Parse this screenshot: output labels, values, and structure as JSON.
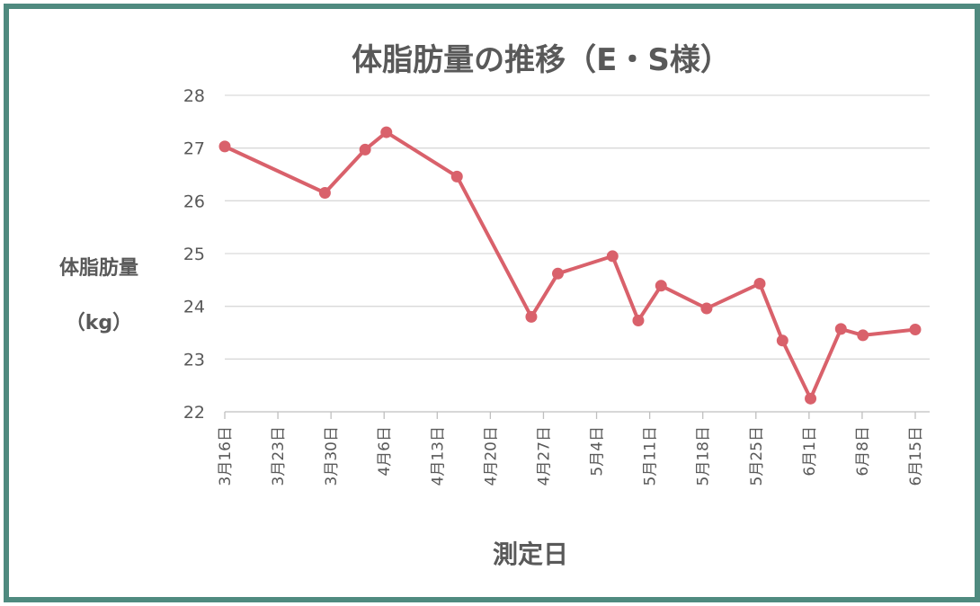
{
  "chart_data": {
    "type": "line",
    "title": "体脂肪量の推移（E・S様）",
    "ylabel_line1": "体脂肪量",
    "ylabel_line2": "（kg）",
    "xlabel": "測定日",
    "ylim": [
      22,
      28
    ],
    "yticks": [
      22,
      23,
      24,
      25,
      26,
      27,
      28
    ],
    "xlim_days": [
      0,
      91
    ],
    "xtick_days": [
      0,
      7,
      14,
      21,
      28,
      35,
      42,
      49,
      56,
      63,
      70,
      77,
      84,
      91
    ],
    "xtick_labels": [
      "3月16日",
      "3月23日",
      "3月30日",
      "4月6日",
      "4月13日",
      "4月20日",
      "4月27日",
      "5月4日",
      "5月11日",
      "5月18日",
      "5月25日",
      "6月1日",
      "6月8日",
      "6月15日"
    ],
    "color": "#d9616b",
    "series": [
      {
        "name": "体脂肪量",
        "x_days": [
          0,
          13.2,
          18.5,
          21.3,
          30.6,
          40.4,
          43.9,
          51.1,
          54.5,
          57.5,
          63.5,
          70.5,
          73.5,
          77.2,
          81.2,
          84.1,
          91
        ],
        "values": [
          27.03,
          26.15,
          26.97,
          27.3,
          26.46,
          23.8,
          24.62,
          24.95,
          23.73,
          24.39,
          23.96,
          24.43,
          23.35,
          22.25,
          23.57,
          23.45,
          23.56
        ]
      }
    ]
  }
}
